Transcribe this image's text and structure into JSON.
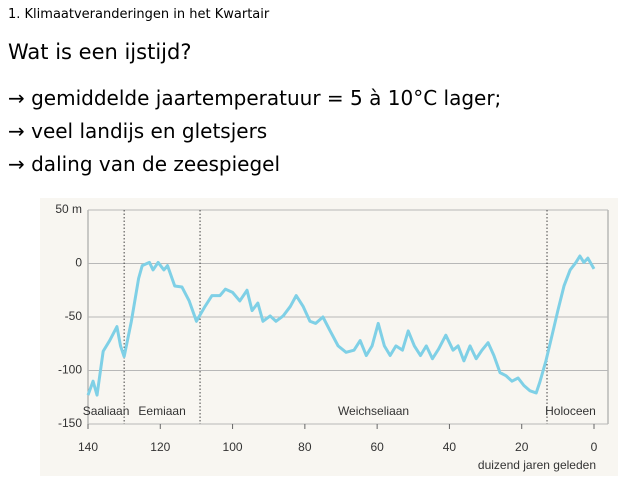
{
  "slide": {
    "section": "1. Klimaatveranderingen in het Kwartair",
    "question": "Wat is een ijstijd?",
    "bullets": [
      "→ gemiddelde jaartemperatuur = 5 à 10°C lager;",
      "→ veel landijs en gletsjers",
      "→ daling van de zeespiegel"
    ]
  },
  "chart_data": {
    "type": "line",
    "xlabel": "duizend jaren geleden",
    "x": [
      140,
      138.6,
      137.5,
      135.8,
      134,
      132,
      131,
      130,
      128,
      126,
      125,
      123,
      122,
      120.6,
      119,
      118,
      116,
      114,
      112,
      110,
      107.6,
      105.7,
      103.5,
      102,
      100,
      98,
      96,
      94.6,
      93,
      91.6,
      89.6,
      88,
      86,
      84,
      82.4,
      80.5,
      78.6,
      77,
      75,
      73,
      70.8,
      68.6,
      66.4,
      64.7,
      63,
      61.4,
      59.7,
      58,
      56.4,
      54.8,
      53,
      51.4,
      49.7,
      48,
      46.4,
      44.7,
      43,
      41,
      39,
      37.6,
      36,
      34.3,
      32.6,
      31,
      29.3,
      27.7,
      26,
      24.3,
      22.7,
      21,
      19.4,
      17.7,
      16,
      15,
      13.3,
      11.6,
      10,
      8.3,
      6.6,
      5,
      3.9,
      2.8,
      1.7,
      0
    ],
    "series": [
      {
        "name": null,
        "color": "#7fd0e6",
        "values": [
          -123,
          -110,
          -123,
          -82,
          -72,
          -59,
          -77,
          -87,
          -54,
          -14,
          -2,
          1,
          -6,
          1,
          -6,
          -2,
          -21,
          -22,
          -35,
          -54,
          -40,
          -30,
          -30,
          -24,
          -27,
          -35,
          -25,
          -44,
          -37,
          -54,
          -49,
          -54,
          -49,
          -40,
          -30,
          -40,
          -54,
          -56,
          -50,
          -63,
          -77,
          -83,
          -81,
          -72,
          -86,
          -77,
          -56,
          -77,
          -86,
          -77,
          -81,
          -63,
          -77,
          -86,
          -77,
          -89,
          -80,
          -67,
          -81,
          -77,
          -91,
          -77,
          -89,
          -81,
          -74,
          -86,
          -102,
          -105,
          -110,
          -107,
          -114,
          -119,
          -121,
          -111,
          -91,
          -67,
          -44,
          -21,
          -6,
          1,
          7,
          1,
          5,
          -5
        ]
      }
    ],
    "xlim": [
      140,
      0
    ],
    "ylim": [
      -150,
      50
    ],
    "xticks": [
      140,
      120,
      100,
      80,
      60,
      40,
      20,
      0
    ],
    "yticks": [
      {
        "value": 50,
        "label": "50 m"
      },
      0,
      -50,
      -100,
      -150
    ],
    "grid": true,
    "periods": [
      "Saaliaan",
      "Eemiaan",
      "Weichseliaan",
      "Holoceen"
    ],
    "boundaries": [
      130,
      109,
      13
    ]
  }
}
